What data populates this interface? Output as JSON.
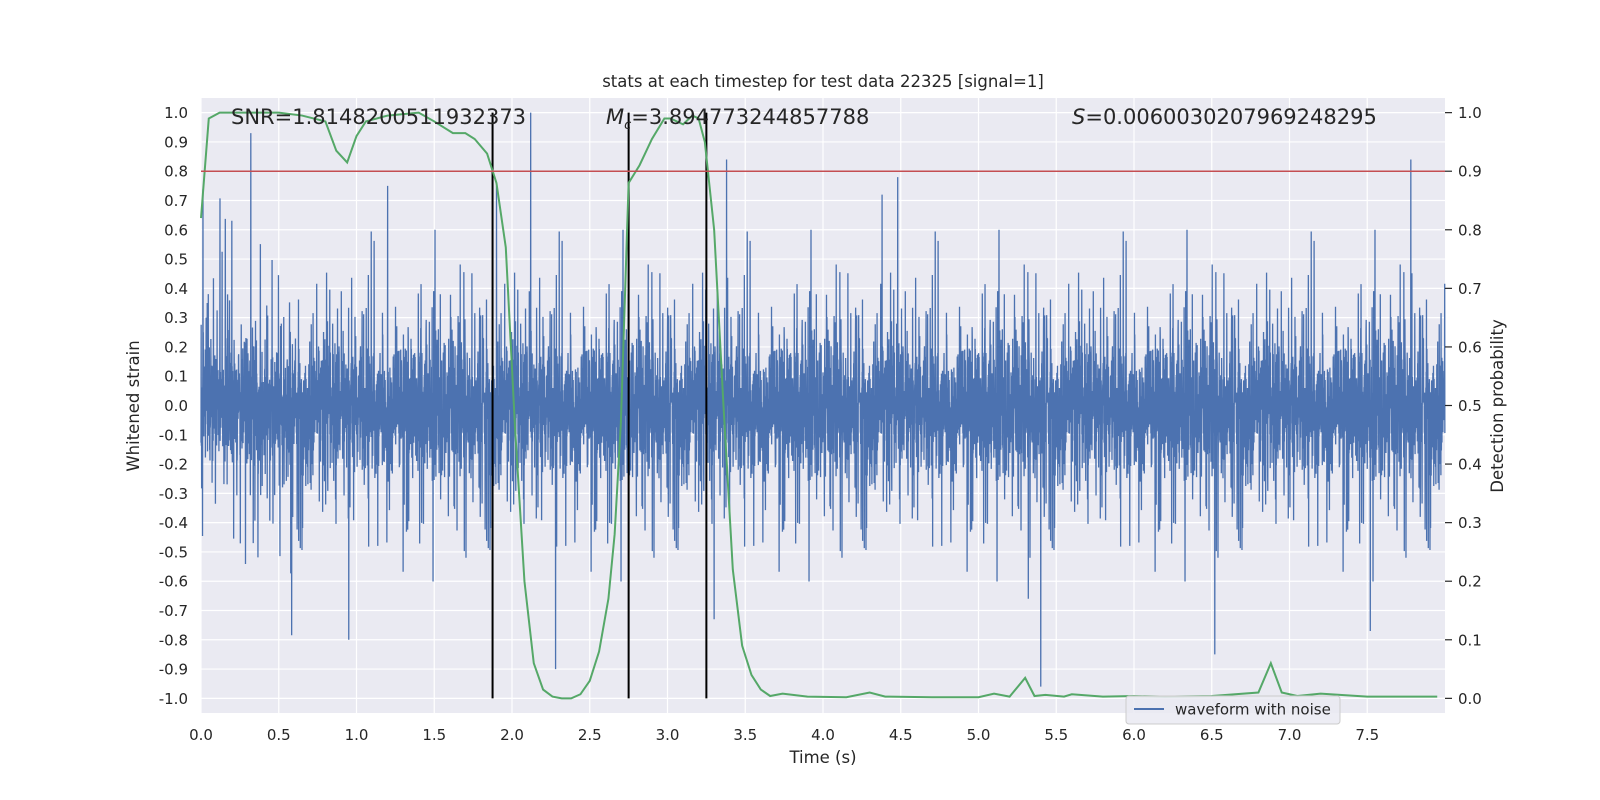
{
  "chart_data": {
    "type": "line",
    "title": "stats at each timestep for test data 22325 [signal=1]",
    "xlabel": "Time (s)",
    "ylabel_left": "Whitened strain",
    "ylabel_right": "Detection probability",
    "xlim": [
      0.0,
      8.0
    ],
    "ylim_left": [
      -1.05,
      1.05
    ],
    "ylim_right": [
      -0.025,
      1.025
    ],
    "xticks": [
      "0.0",
      "0.5",
      "1.0",
      "1.5",
      "2.0",
      "2.5",
      "3.0",
      "3.5",
      "4.0",
      "4.5",
      "5.0",
      "5.5",
      "6.0",
      "6.5",
      "7.0",
      "7.5"
    ],
    "yticks_left": [
      "1.0",
      "0.9",
      "0.8",
      "0.7",
      "0.6",
      "0.5",
      "0.4",
      "0.3",
      "0.2",
      "0.1",
      "0.0",
      "-0.1",
      "-0.2",
      "-0.3",
      "-0.4",
      "-0.5",
      "-0.6",
      "-0.7",
      "-0.8",
      "-0.9",
      "-1.0"
    ],
    "yticks_right": [
      "1.0",
      "0.9",
      "0.8",
      "0.7",
      "0.6",
      "0.5",
      "0.4",
      "0.3",
      "0.2",
      "0.1",
      "0.0"
    ],
    "grid": true,
    "legend": {
      "position": "lower-right",
      "entries": [
        "waveform with noise"
      ]
    },
    "annotations": {
      "snr": "SNR=1.8148200511932373",
      "mc_symbol": "M",
      "mc_sub": "c",
      "mc_value": "=3.894773244857788",
      "s_symbol": "S",
      "s_value": "=0.0060030207969248295"
    },
    "threshold": {
      "axis": "right",
      "value": 0.9
    },
    "vlines": [
      1.875,
      2.75,
      3.25
    ],
    "vline_range": [
      0.0,
      1.0
    ],
    "waveform": {
      "name": "waveform with noise",
      "sample_rate": 2048,
      "duration": 8.0,
      "core_amplitude": 0.2,
      "peaks": [
        [
          0.32,
          0.93
        ],
        [
          1.2,
          0.75
        ],
        [
          2.12,
          1.0
        ],
        [
          2.28,
          -0.9
        ],
        [
          3.3,
          -0.73
        ],
        [
          3.38,
          0.84
        ],
        [
          4.48,
          0.78
        ],
        [
          5.4,
          -0.96
        ],
        [
          5.32,
          -0.66
        ],
        [
          6.52,
          -0.85
        ],
        [
          7.78,
          0.84
        ],
        [
          7.52,
          -0.77
        ],
        [
          0.95,
          -0.8
        ],
        [
          1.9,
          0.75
        ],
        [
          4.38,
          0.72
        ]
      ]
    },
    "probability": {
      "name": "Detection probability",
      "x": [
        0.0,
        0.05,
        0.12,
        0.3,
        0.5,
        0.65,
        0.8,
        0.87,
        0.94,
        1.0,
        1.06,
        1.2,
        1.4,
        1.5,
        1.62,
        1.7,
        1.76,
        1.84,
        1.9,
        1.96,
        2.02,
        2.08,
        2.14,
        2.2,
        2.26,
        2.32,
        2.38,
        2.44,
        2.5,
        2.56,
        2.62,
        2.66,
        2.7,
        2.75,
        2.82,
        2.9,
        2.98,
        3.02,
        3.1,
        3.16,
        3.2,
        3.24,
        3.3,
        3.36,
        3.42,
        3.48,
        3.54,
        3.6,
        3.66,
        3.74,
        3.9,
        4.15,
        4.3,
        4.4,
        4.7,
        5.0,
        5.1,
        5.2,
        5.3,
        5.36,
        5.43,
        5.55,
        5.6,
        5.8,
        6.0,
        6.2,
        6.5,
        6.8,
        6.88,
        6.95,
        7.05,
        7.2,
        7.5,
        7.95
      ],
      "y": [
        0.82,
        0.99,
        1.0,
        1.0,
        1.0,
        0.995,
        0.985,
        0.935,
        0.915,
        0.96,
        0.985,
        0.995,
        1.0,
        0.985,
        0.965,
        0.965,
        0.955,
        0.93,
        0.88,
        0.77,
        0.46,
        0.2,
        0.06,
        0.015,
        0.003,
        0.0,
        0.0,
        0.007,
        0.03,
        0.08,
        0.17,
        0.28,
        0.47,
        0.88,
        0.91,
        0.955,
        0.99,
        0.99,
        0.98,
        0.995,
        0.99,
        0.95,
        0.8,
        0.5,
        0.22,
        0.09,
        0.04,
        0.015,
        0.004,
        0.008,
        0.003,
        0.002,
        0.01,
        0.003,
        0.002,
        0.002,
        0.008,
        0.003,
        0.035,
        0.004,
        0.006,
        0.003,
        0.007,
        0.003,
        0.004,
        0.003,
        0.004,
        0.01,
        0.06,
        0.01,
        0.004,
        0.008,
        0.003,
        0.003
      ]
    },
    "colors": {
      "background": "#eaeaf2",
      "grid": "#ffffff",
      "waveform": "#4c72b0",
      "probability": "#55a868",
      "threshold": "#c44e52",
      "vline": "#000000",
      "text": "#262626"
    }
  }
}
